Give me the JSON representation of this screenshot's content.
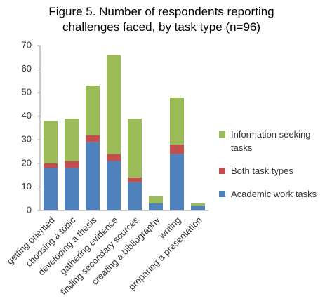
{
  "chart_data": {
    "type": "stacked-bar",
    "title": "Figure 5. Number of respondents reporting challenges faced, by task type (n=96)",
    "categories": [
      "getting oriented",
      "choosing a topic",
      "developing a thesis",
      "gathering evidence",
      "finding secondary sources",
      "creating a bibliography",
      "writing",
      "preparing a presentation"
    ],
    "series": [
      {
        "name": "Academic work tasks",
        "color": "#4f81bd",
        "values": [
          18,
          18,
          29,
          21,
          12,
          3,
          24,
          2
        ]
      },
      {
        "name": "Both task types",
        "color": "#c0504d",
        "values": [
          2,
          3,
          3,
          3,
          2,
          0,
          4,
          0
        ]
      },
      {
        "name": "Information seeking tasks",
        "color": "#9bbb59",
        "values": [
          18,
          18,
          21,
          42,
          25,
          3,
          20,
          1
        ]
      }
    ],
    "ylim": [
      0,
      70
    ],
    "yticks": [
      0,
      10,
      20,
      30,
      40,
      50,
      60,
      70
    ],
    "grid": false,
    "legend": "right"
  }
}
